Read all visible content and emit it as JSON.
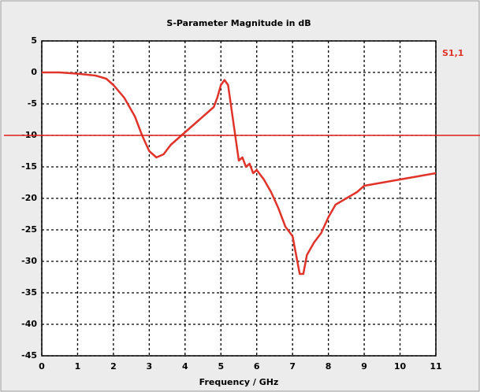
{
  "chart_data": {
    "type": "line",
    "title": "S-Parameter Magnitude in dB",
    "xlabel": "Frequency / GHz",
    "x": [
      0,
      0.5,
      1,
      1.5,
      1.8,
      2,
      2.3,
      2.6,
      2.8,
      3.0,
      3.2,
      3.4,
      3.6,
      3.8,
      4.0,
      4.2,
      4.4,
      4.6,
      4.8,
      4.9,
      5.0,
      5.1,
      5.2,
      5.3,
      5.4,
      5.5,
      5.6,
      5.7,
      5.8,
      5.9,
      6.0,
      6.2,
      6.4,
      6.6,
      6.8,
      7.0,
      7.1,
      7.2,
      7.3,
      7.4,
      7.6,
      7.8,
      8.0,
      8.2,
      8.5,
      8.8,
      9.0,
      9.5,
      10,
      10.5,
      11
    ],
    "series": [
      {
        "name": "S1,1",
        "color": "#e0332a",
        "values": [
          0,
          0,
          -0.2,
          -0.5,
          -1,
          -2,
          -4,
          -7,
          -10,
          -12.5,
          -13.5,
          -13,
          -11.5,
          -10.5,
          -9.5,
          -8.5,
          -7.5,
          -6.5,
          -5.5,
          -4,
          -2,
          -1.2,
          -2,
          -6,
          -10,
          -14,
          -13.5,
          -15,
          -14.5,
          -16,
          -15.5,
          -17,
          -19,
          -21.5,
          -24.5,
          -26,
          -29,
          -32,
          -32,
          -29,
          -27,
          -25.5,
          -23,
          -21,
          -20,
          -19,
          -18,
          -17.5,
          -17,
          -16.5,
          -16
        ]
      }
    ],
    "reference_line": -10,
    "reference_color": "#e0201a",
    "xlim": [
      0,
      11
    ],
    "ylim": [
      -45,
      5
    ],
    "xticks": [
      0,
      1,
      2,
      3,
      4,
      5,
      6,
      7,
      8,
      9,
      10,
      11
    ],
    "yticks": [
      5,
      0,
      -5,
      -10,
      -15,
      -20,
      -25,
      -30,
      -35,
      -40,
      -45
    ],
    "grid": true
  }
}
